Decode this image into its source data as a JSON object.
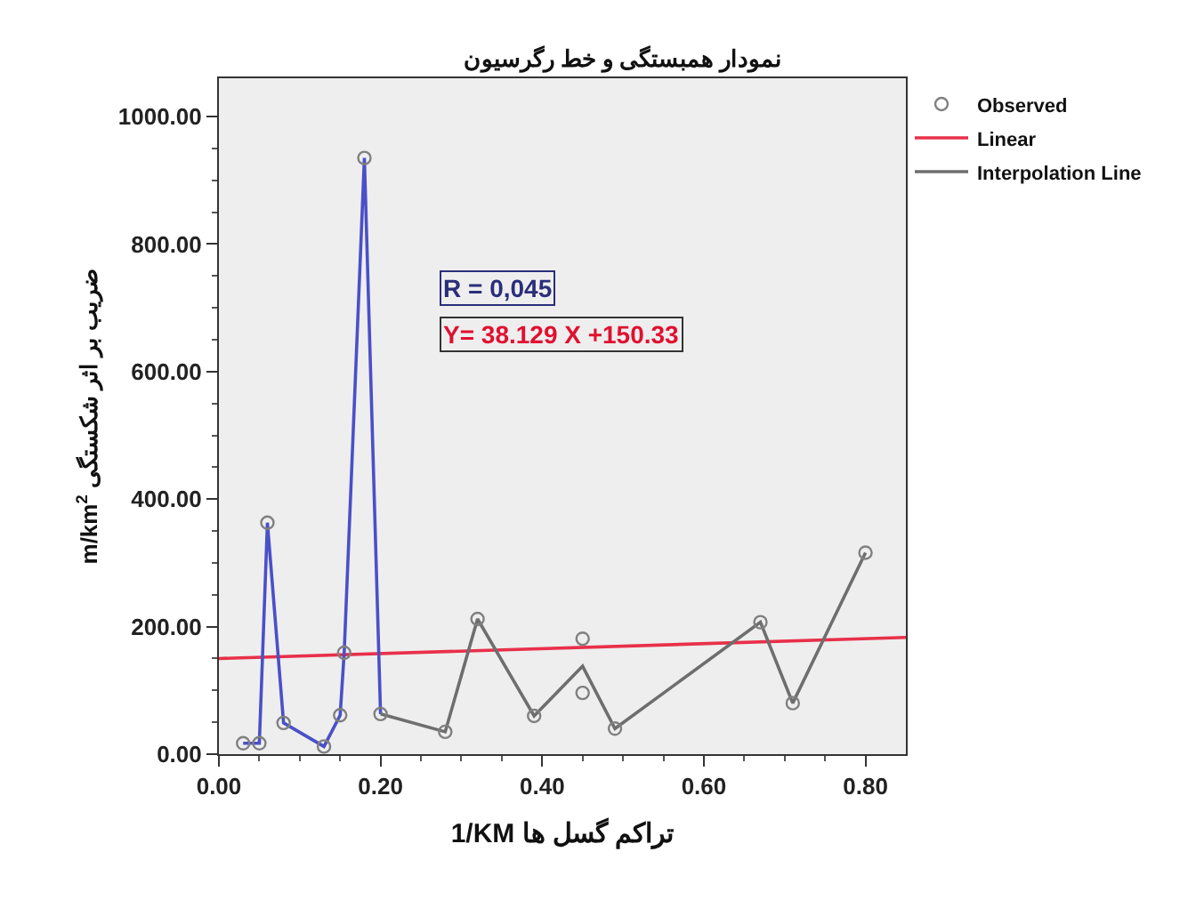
{
  "chart_data": {
    "type": "scatter",
    "title": "نمودار همبستگی و خط رگرسیون",
    "xlabel": "1/KM تراکم گسل ها",
    "ylabel": "m/km$^{2}$ ضریب بر اثر شکستگی",
    "annotations": [
      "R = 0,045",
      "Y= 38.129 X +150.33"
    ],
    "xlim": [
      0,
      0.85
    ],
    "xticks": [
      {
        "value": 0,
        "label": "0.00"
      },
      {
        "value": 0.05,
        "label": null
      },
      {
        "value": 0.1,
        "label": null
      },
      {
        "value": 0.15,
        "label": null
      },
      {
        "value": 0.2,
        "label": "0.20"
      },
      {
        "value": 0.25,
        "label": null
      },
      {
        "value": 0.3,
        "label": null
      },
      {
        "value": 0.35,
        "label": null
      },
      {
        "value": 0.4,
        "label": "0.40"
      },
      {
        "value": 0.45,
        "label": null
      },
      {
        "value": 0.5,
        "label": null
      },
      {
        "value": 0.55,
        "label": null
      },
      {
        "value": 0.6,
        "label": "0.60"
      },
      {
        "value": 0.65,
        "label": null
      },
      {
        "value": 0.7,
        "label": null
      },
      {
        "value": 0.75,
        "label": null
      },
      {
        "value": 0.8,
        "label": "0.80"
      }
    ],
    "ylim": [
      0,
      1060
    ],
    "yticks": [
      {
        "value": 0,
        "label": "0.00"
      },
      {
        "value": 50,
        "label": null
      },
      {
        "value": 100,
        "label": null
      },
      {
        "value": 150,
        "label": null
      },
      {
        "value": 200,
        "label": "200.00"
      },
      {
        "value": 250,
        "label": null
      },
      {
        "value": 300,
        "label": null
      },
      {
        "value": 350,
        "label": null
      },
      {
        "value": 400,
        "label": "400.00"
      },
      {
        "value": 450,
        "label": null
      },
      {
        "value": 500,
        "label": null
      },
      {
        "value": 550,
        "label": null
      },
      {
        "value": 600,
        "label": "600.00"
      },
      {
        "value": 650,
        "label": null
      },
      {
        "value": 700,
        "label": null
      },
      {
        "value": 750,
        "label": null
      },
      {
        "value": 800,
        "label": "800.00"
      },
      {
        "value": 850,
        "label": null
      },
      {
        "value": 900,
        "label": null
      },
      {
        "value": 950,
        "label": null
      },
      {
        "value": 1000,
        "label": "1000.00"
      }
    ],
    "series": [
      {
        "name": "Observed",
        "marker": "circle",
        "color": "#808080",
        "x": [
          0.03,
          0.05,
          0.06,
          0.08,
          0.13,
          0.15,
          0.155,
          0.18,
          0.2,
          0.28,
          0.32,
          0.39,
          0.45,
          0.45,
          0.49,
          0.67,
          0.71,
          0.8
        ],
        "values": [
          17,
          17,
          363,
          49,
          12,
          61,
          159,
          935,
          63,
          35,
          212,
          60,
          181,
          96,
          40,
          207,
          80,
          316
        ]
      },
      {
        "name": "Linear",
        "type": "line",
        "marker": "none",
        "color": "#e8304a",
        "x": [
          0,
          0.85
        ],
        "values": [
          150,
          183
        ]
      },
      {
        "type": "line",
        "marker": "none",
        "color": "#4a50c8",
        "x": [
          0.03,
          0.05,
          0.06,
          0.08,
          0.13,
          0.15,
          0.155,
          0.18,
          0.2
        ],
        "values": [
          17,
          17,
          363,
          49,
          12,
          61,
          159,
          935,
          63
        ]
      },
      {
        "name": "Interpolation Line",
        "type": "line",
        "marker": "none",
        "color": "#6e6e6e",
        "x": [
          0.2,
          0.28,
          0.32,
          0.39,
          0.45,
          0.49,
          0.67,
          0.71,
          0.8
        ],
        "values": [
          63,
          35,
          212,
          60,
          138,
          40,
          207,
          80,
          316
        ]
      }
    ],
    "legend": "top right",
    "grid": false
  }
}
